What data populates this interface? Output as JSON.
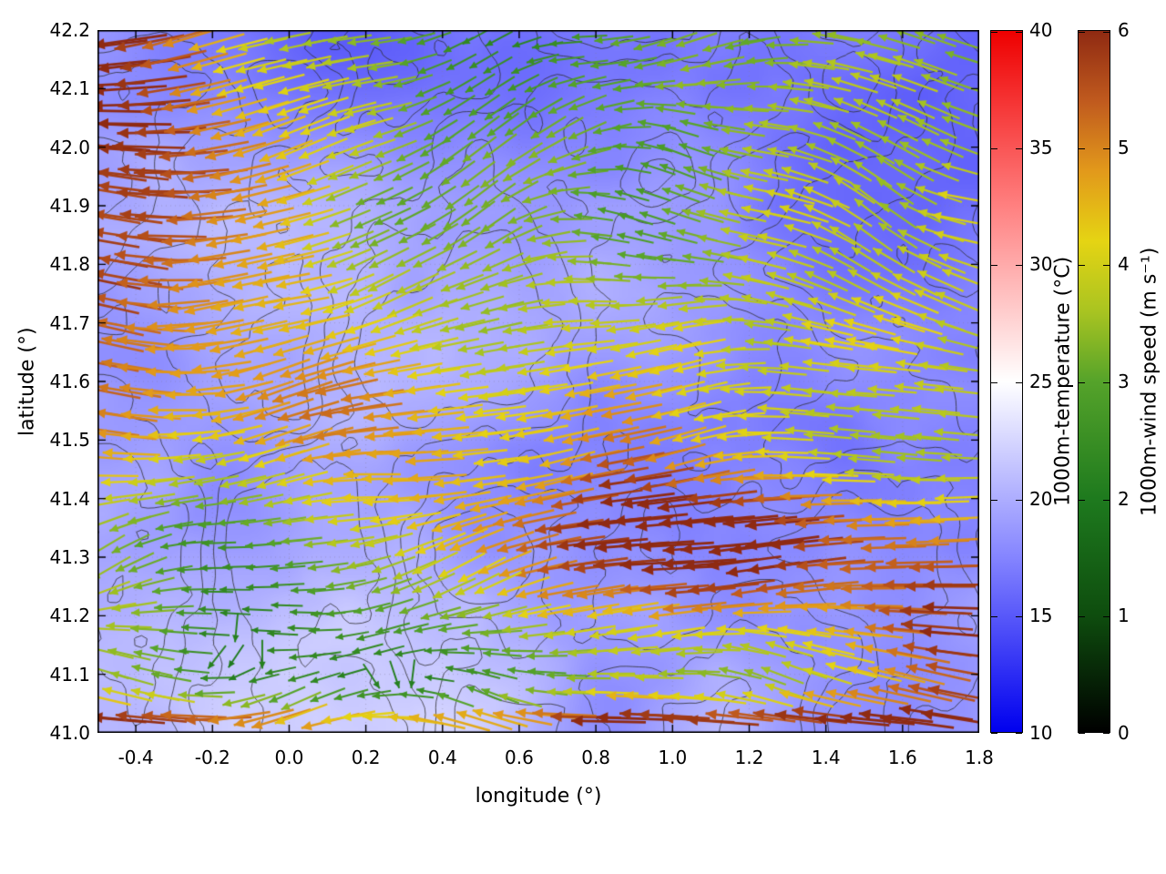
{
  "page": {
    "background": "#ffffff"
  },
  "chart_data": {
    "type": "heatmap+contour+quiver",
    "title": "",
    "xlabel": "longitude (°)",
    "ylabel": "latitude (°)",
    "xlim": [
      -0.5,
      1.8
    ],
    "ylim": [
      41.0,
      42.2
    ],
    "x_tick_values": [
      -0.4,
      -0.2,
      0.0,
      0.2,
      0.4,
      0.6,
      0.8,
      1.0,
      1.2,
      1.4,
      1.6,
      1.8
    ],
    "x_tick_labels": [
      "-0.4",
      "-0.2",
      "0.0",
      "0.2",
      "0.4",
      "0.6",
      "0.8",
      "1.0",
      "1.2",
      "1.4",
      "1.6",
      "1.8"
    ],
    "y_tick_values": [
      41.0,
      41.1,
      41.2,
      41.3,
      41.4,
      41.5,
      41.6,
      41.7,
      41.8,
      41.9,
      42.0,
      42.1,
      42.2
    ],
    "y_tick_labels": [
      "41.0",
      "41.1",
      "41.2",
      "41.3",
      "41.4",
      "41.5",
      "41.6",
      "41.7",
      "41.8",
      "41.9",
      "42.0",
      "42.1",
      "42.2"
    ],
    "grid": "faint dotted gridlines at major ticks",
    "layers": [
      {
        "layer": "heatmap",
        "variable": "1000m-temperature",
        "units": "°C",
        "range_shown_approx": [
          13,
          24
        ],
        "appearance": "light blue to lavender field, darkest blue (coldest) over the north and north-east"
      },
      {
        "layer": "contours",
        "variable": "terrain / orography",
        "appearance": "thin dark-gray wiggly contour lines with many nested closed loops"
      },
      {
        "layer": "vectors",
        "variable": "1000m-wind",
        "color_by": "wind speed",
        "units": "m s⁻¹",
        "appearance": "dense arrow field on ~regular grid, arrow length and color scale with speed",
        "dominant_direction": "easterly flow – most arrows point westward (left)"
      }
    ],
    "colorbars": [
      {
        "id": "temperature",
        "label": "1000m-temperature (°C)",
        "min": 10,
        "max": 40,
        "tick_values": [
          40,
          35,
          30,
          25,
          20,
          15,
          10
        ],
        "tick_labels": [
          "40",
          "35",
          "30",
          "25",
          "20",
          "15",
          "10"
        ],
        "stops": [
          [
            10,
            "#0000ee"
          ],
          [
            17.5,
            "#8585ff"
          ],
          [
            25,
            "#ffffff"
          ],
          [
            32.5,
            "#ff8080"
          ],
          [
            40,
            "#ee0000"
          ]
        ]
      },
      {
        "id": "wind-speed",
        "label": "1000m-wind speed (m s⁻¹)",
        "min": 0,
        "max": 6,
        "tick_values": [
          6,
          5,
          4,
          3,
          2,
          1,
          0
        ],
        "tick_labels": [
          "6",
          "5",
          "4",
          "3",
          "2",
          "1",
          "0"
        ],
        "stops": [
          [
            0,
            "#000000"
          ],
          [
            1,
            "#0e4d0e"
          ],
          [
            2,
            "#1e7a1e"
          ],
          [
            3,
            "#55a32a"
          ],
          [
            3.6,
            "#a9c421"
          ],
          [
            4.2,
            "#e5d413"
          ],
          [
            4.8,
            "#e2991b"
          ],
          [
            5.4,
            "#c05a1e"
          ],
          [
            6,
            "#8f2a12"
          ]
        ]
      }
    ],
    "field_summary": {
      "temperature": "mostly 15–22 °C; coldest (deeper blue) across the north and north-east, palest (near-white) patches along the western edge and south-west",
      "wind_speed_maxima": "dark-red fast winds (5–6 m/s) in the north-west quadrant and western edge, along the entire southern boundary, in a band near 41.25–41.35°N between 0.9–1.4°E, and near the eastern edge around 41.1–41.3°N",
      "wind_speed_minima": "dark-green to black slow winds (0–2 m/s) scattered through the centre, east and top-right",
      "direction": "predominantly westward-pointing arrows (easterly flow); slow green/black arrows have highly variable directions"
    }
  }
}
